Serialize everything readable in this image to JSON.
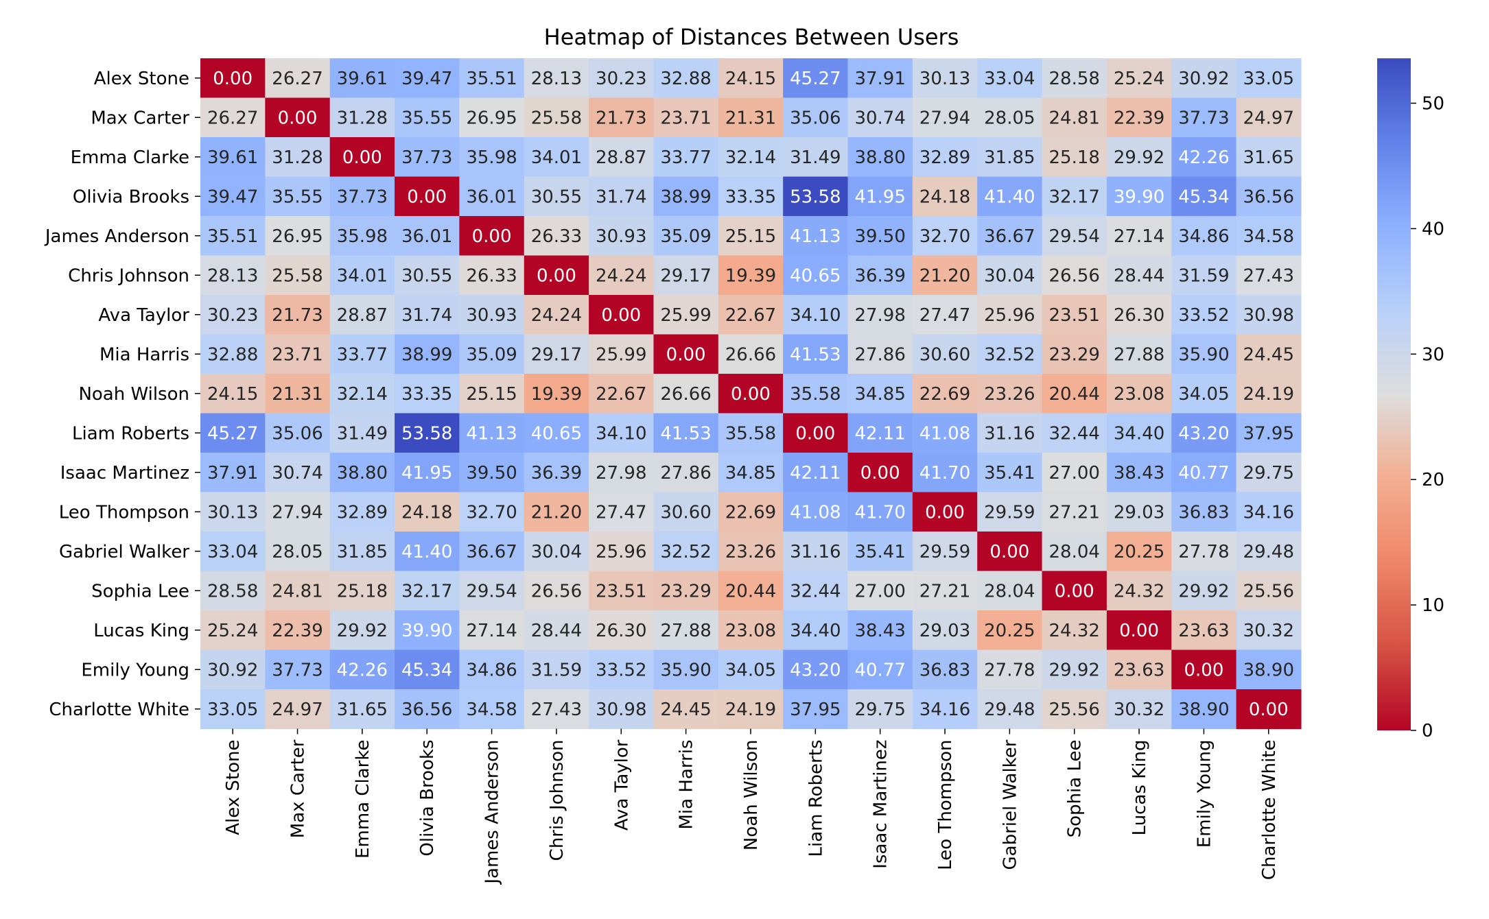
{
  "chart_data": {
    "type": "heatmap",
    "title": "Heatmap of Distances Between Users",
    "xlabel": "",
    "ylabel": "",
    "categories": [
      "Alex Stone",
      "Max Carter",
      "Emma Clarke",
      "Olivia Brooks",
      "James Anderson",
      "Chris Johnson",
      "Ava Taylor",
      "Mia Harris",
      "Noah Wilson",
      "Liam Roberts",
      "Isaac Martinez",
      "Leo Thompson",
      "Gabriel Walker",
      "Sophia Lee",
      "Lucas King",
      "Emily Young",
      "Charlotte White"
    ],
    "values": [
      [
        0.0,
        26.27,
        39.61,
        39.47,
        35.51,
        28.13,
        30.23,
        32.88,
        24.15,
        45.27,
        37.91,
        30.13,
        33.04,
        28.58,
        25.24,
        30.92,
        33.05
      ],
      [
        26.27,
        0.0,
        31.28,
        35.55,
        26.95,
        25.58,
        21.73,
        23.71,
        21.31,
        35.06,
        30.74,
        27.94,
        28.05,
        24.81,
        22.39,
        37.73,
        24.97
      ],
      [
        39.61,
        31.28,
        0.0,
        37.73,
        35.98,
        34.01,
        28.87,
        33.77,
        32.14,
        31.49,
        38.8,
        32.89,
        31.85,
        25.18,
        29.92,
        42.26,
        31.65
      ],
      [
        39.47,
        35.55,
        37.73,
        0.0,
        36.01,
        30.55,
        31.74,
        38.99,
        33.35,
        53.58,
        41.95,
        24.18,
        41.4,
        32.17,
        39.9,
        45.34,
        36.56
      ],
      [
        35.51,
        26.95,
        35.98,
        36.01,
        0.0,
        26.33,
        30.93,
        35.09,
        25.15,
        41.13,
        39.5,
        32.7,
        36.67,
        29.54,
        27.14,
        34.86,
        34.58
      ],
      [
        28.13,
        25.58,
        34.01,
        30.55,
        26.33,
        0.0,
        24.24,
        29.17,
        19.39,
        40.65,
        36.39,
        21.2,
        30.04,
        26.56,
        28.44,
        31.59,
        27.43
      ],
      [
        30.23,
        21.73,
        28.87,
        31.74,
        30.93,
        24.24,
        0.0,
        25.99,
        22.67,
        34.1,
        27.98,
        27.47,
        25.96,
        23.51,
        26.3,
        33.52,
        30.98
      ],
      [
        32.88,
        23.71,
        33.77,
        38.99,
        35.09,
        29.17,
        25.99,
        0.0,
        26.66,
        41.53,
        27.86,
        30.6,
        32.52,
        23.29,
        27.88,
        35.9,
        24.45
      ],
      [
        24.15,
        21.31,
        32.14,
        33.35,
        25.15,
        19.39,
        22.67,
        26.66,
        0.0,
        35.58,
        34.85,
        22.69,
        23.26,
        20.44,
        23.08,
        34.05,
        24.19
      ],
      [
        45.27,
        35.06,
        31.49,
        53.58,
        41.13,
        40.65,
        34.1,
        41.53,
        35.58,
        0.0,
        42.11,
        41.08,
        31.16,
        32.44,
        34.4,
        43.2,
        37.95
      ],
      [
        37.91,
        30.74,
        38.8,
        41.95,
        39.5,
        36.39,
        27.98,
        27.86,
        34.85,
        42.11,
        0.0,
        41.7,
        35.41,
        27.0,
        38.43,
        40.77,
        29.75
      ],
      [
        30.13,
        27.94,
        32.89,
        24.18,
        32.7,
        21.2,
        27.47,
        30.6,
        22.69,
        41.08,
        41.7,
        0.0,
        29.59,
        27.21,
        29.03,
        36.83,
        34.16
      ],
      [
        33.04,
        28.05,
        31.85,
        41.4,
        36.67,
        30.04,
        25.96,
        32.52,
        23.26,
        31.16,
        35.41,
        29.59,
        0.0,
        28.04,
        20.25,
        27.78,
        29.48
      ],
      [
        28.58,
        24.81,
        25.18,
        32.17,
        29.54,
        26.56,
        23.51,
        23.29,
        20.44,
        32.44,
        27.0,
        27.21,
        28.04,
        0.0,
        24.32,
        29.92,
        25.56
      ],
      [
        25.24,
        22.39,
        29.92,
        39.9,
        27.14,
        28.44,
        26.3,
        27.88,
        23.08,
        34.4,
        38.43,
        29.03,
        20.25,
        24.32,
        0.0,
        23.63,
        30.32
      ],
      [
        30.92,
        37.73,
        42.26,
        45.34,
        34.86,
        31.59,
        33.52,
        35.9,
        34.05,
        43.2,
        40.77,
        36.83,
        27.78,
        29.92,
        23.63,
        0.0,
        38.9
      ],
      [
        33.05,
        24.97,
        31.65,
        36.56,
        34.58,
        27.43,
        30.98,
        24.45,
        24.19,
        37.95,
        29.75,
        34.16,
        29.48,
        25.56,
        30.32,
        38.9,
        0.0
      ]
    ],
    "value_range": [
      0,
      53.58
    ],
    "colormap": "coolwarm_r",
    "colorbar_ticks": [
      0,
      10,
      20,
      30,
      40,
      50
    ],
    "annotation_format": "0.00",
    "grid": false,
    "legend": "colorbar-right"
  }
}
